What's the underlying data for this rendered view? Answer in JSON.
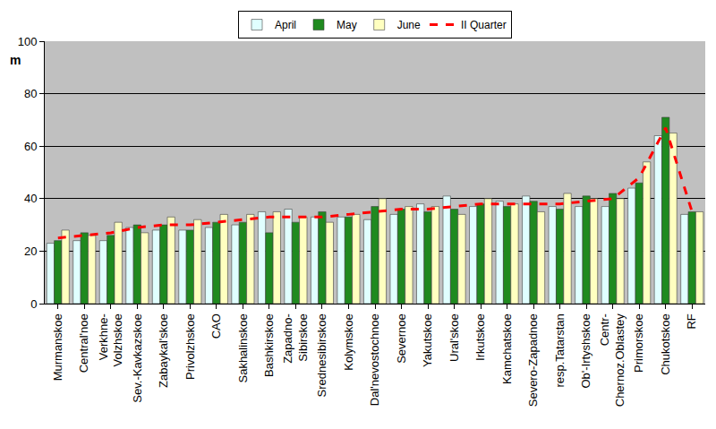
{
  "chart_data": {
    "type": "bar",
    "y_label": "m",
    "categories": [
      "Murmanskoe",
      "Central'noe",
      "Verkhne-\nVolzhskoe",
      "Sev.-Kavkazskoe",
      "Zabaykal'skoe",
      "Privolzhskoe",
      "CAO",
      "Sakhalinskoe",
      "Bashkirskoe",
      "Zapadno-\nSibirskoe",
      "Srednesibirskoe",
      "Kolymskoe",
      "Dal'nevostochnoe",
      "Severnoe",
      "Yakutskoe",
      "Ural'skoe",
      "Irkutskoe",
      "Kamchatskoe",
      "Severo-Zapadnoe",
      "resp.Tatarstan",
      "Ob'-Irtyshskoe",
      "Centr-\nChernoz.Oblastey",
      "Primorskoe",
      "Chukotskoe",
      "RF"
    ],
    "series": [
      {
        "name": "April",
        "type": "bar",
        "color": "#e0ffff",
        "values": [
          23,
          24,
          24,
          29,
          28,
          28,
          29,
          30,
          35,
          36,
          33,
          33,
          32,
          34,
          38,
          41,
          37,
          39,
          41,
          37,
          37,
          37,
          44,
          64,
          34
        ]
      },
      {
        "name": "May",
        "type": "bar",
        "color": "#1f8a1f",
        "values": [
          24,
          27,
          26,
          30,
          30,
          28,
          31,
          31,
          27,
          31,
          35,
          33,
          37,
          36,
          35,
          36,
          38,
          37,
          39,
          36,
          41,
          42,
          46,
          71,
          35
        ]
      },
      {
        "name": "June",
        "type": "bar",
        "color": "#ffffc0",
        "values": [
          28,
          26,
          31,
          27,
          33,
          32,
          34,
          34,
          35,
          33,
          31,
          34,
          40,
          37,
          37,
          34,
          40,
          38,
          35,
          42,
          40,
          40,
          54,
          65,
          35
        ]
      },
      {
        "name": "II Quarter",
        "type": "line",
        "color": "#ff0000",
        "line_style": "dash",
        "values": [
          25,
          26,
          27,
          29,
          30,
          30,
          31,
          32,
          33,
          33,
          33,
          34,
          35,
          36,
          36,
          37,
          38,
          38,
          38,
          38,
          39,
          40,
          48,
          67,
          35
        ]
      }
    ],
    "ylim": [
      0,
      100
    ],
    "yticks": [
      0,
      20,
      40,
      60,
      80,
      100
    ],
    "grid": true,
    "legend": "top"
  }
}
